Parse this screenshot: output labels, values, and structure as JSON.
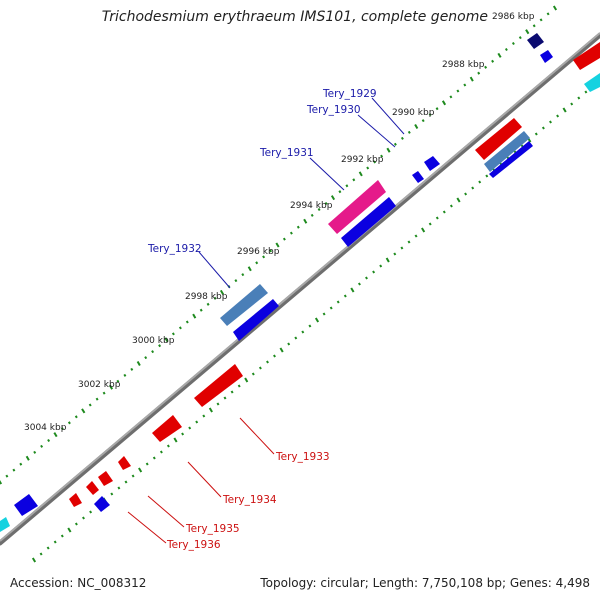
{
  "title": "Trichodesmium erythraeum IMS101, complete genome",
  "footer": {
    "accession": "Accession: NC_008312",
    "summary": "Topology: circular; Length: 7,750,108 bp; Genes: 4,498"
  },
  "colors": {
    "forward_gene": "#0b00e0",
    "reverse_gene": "#e00000",
    "magenta": "#e51a8a",
    "steel": "#4a7fb8",
    "navy": "#0a0a70",
    "cyan": "#15d2e0",
    "backbone": "#8a8a8a",
    "ticks": "#1e8a1e",
    "label_blue": "#1a1aa8",
    "label_red": "#cc1010"
  },
  "ticks": [
    {
      "label": "2986 kbp",
      "kbp": 2986
    },
    {
      "label": "2988 kbp",
      "kbp": 2988
    },
    {
      "label": "2990 kbp",
      "kbp": 2990
    },
    {
      "label": "2992 kbp",
      "kbp": 2992
    },
    {
      "label": "2994 kbp",
      "kbp": 2994
    },
    {
      "label": "2996 kbp",
      "kbp": 2996
    },
    {
      "label": "2998 kbp",
      "kbp": 2998
    },
    {
      "label": "3000 kbp",
      "kbp": 3000
    },
    {
      "label": "3002 kbp",
      "kbp": 3002
    },
    {
      "label": "3004 kbp",
      "kbp": 3004
    }
  ],
  "gene_labels": [
    {
      "text": "Tery_1929",
      "strand": "forward"
    },
    {
      "text": "Tery_1930",
      "strand": "forward"
    },
    {
      "text": "Tery_1931",
      "strand": "forward"
    },
    {
      "text": "Tery_1932",
      "strand": "forward"
    },
    {
      "text": "Tery_1933",
      "strand": "reverse"
    },
    {
      "text": "Tery_1934",
      "strand": "reverse"
    },
    {
      "text": "Tery_1935",
      "strand": "reverse"
    },
    {
      "text": "Tery_1936",
      "strand": "reverse"
    }
  ]
}
